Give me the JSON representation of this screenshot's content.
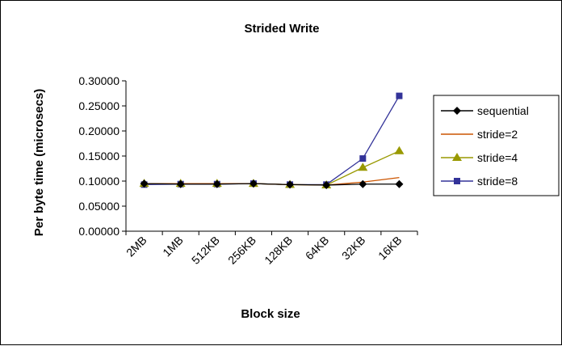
{
  "chart_data": {
    "type": "line",
    "title": "Strided Write",
    "xlabel": "Block size",
    "ylabel": "Per byte time (microsecs)",
    "categories": [
      "2MB",
      "1MB",
      "512KB",
      "256KB",
      "128KB",
      "64KB",
      "32KB",
      "16KB"
    ],
    "ylim": [
      0,
      0.3
    ],
    "yticks": [
      "0.00000",
      "0.05000",
      "0.10000",
      "0.15000",
      "0.20000",
      "0.25000",
      "0.30000"
    ],
    "grid": false,
    "legend_position": "right",
    "series": [
      {
        "name": "sequential",
        "color": "#000000",
        "marker": "diamond",
        "values": [
          0.095,
          0.094,
          0.094,
          0.095,
          0.093,
          0.092,
          0.094,
          0.094
        ]
      },
      {
        "name": "stride=2",
        "color": "#cc5500",
        "marker": "none",
        "values": [
          0.095,
          0.095,
          0.095,
          0.095,
          0.093,
          0.092,
          0.098,
          0.107
        ]
      },
      {
        "name": "stride=4",
        "color": "#999900",
        "marker": "triangle",
        "values": [
          0.095,
          0.095,
          0.095,
          0.095,
          0.093,
          0.092,
          0.127,
          0.16
        ]
      },
      {
        "name": "stride=8",
        "color": "#333399",
        "marker": "square",
        "values": [
          0.093,
          0.094,
          0.094,
          0.095,
          0.093,
          0.093,
          0.145,
          0.27
        ]
      }
    ]
  }
}
